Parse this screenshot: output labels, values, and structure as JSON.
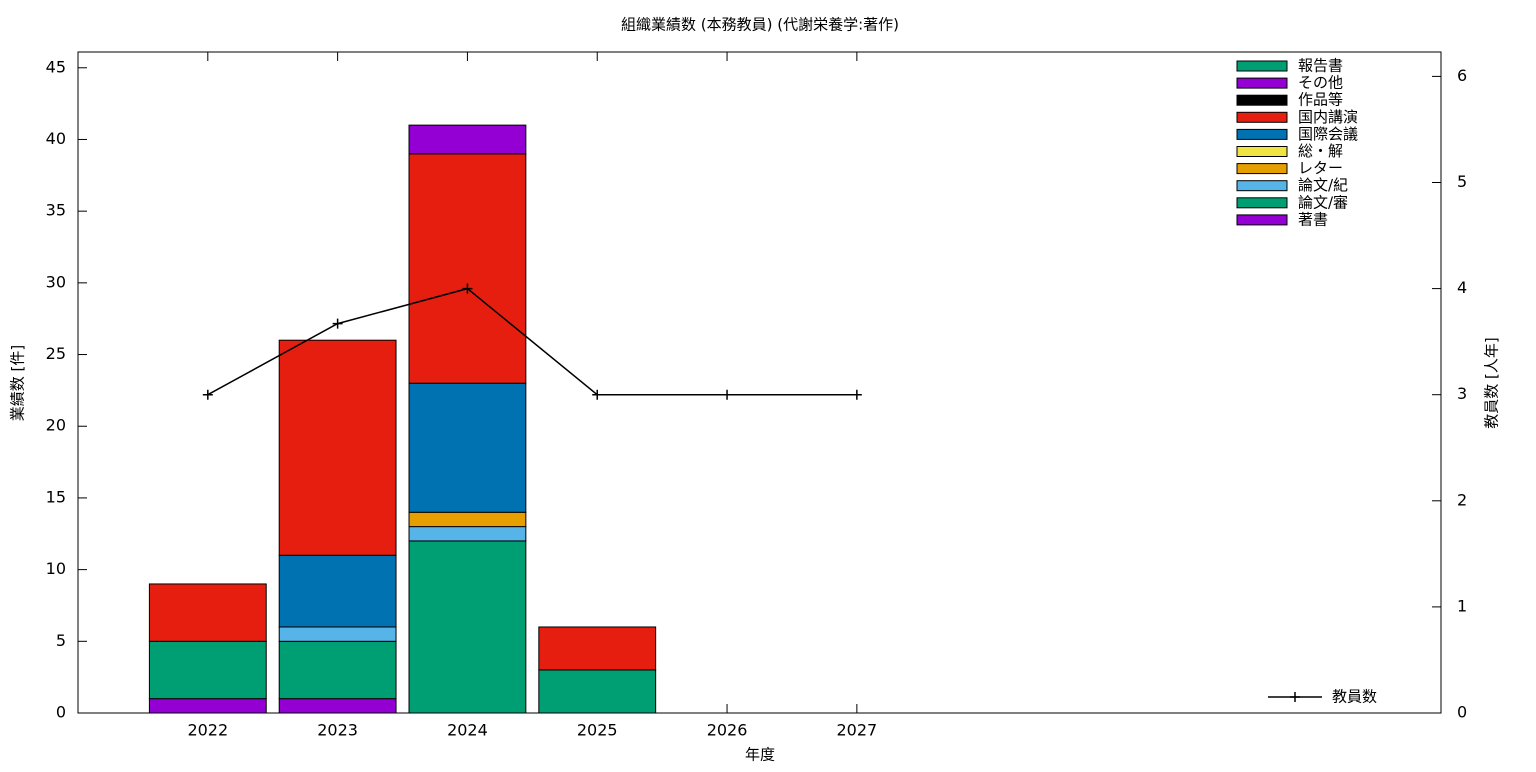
{
  "chart_data": {
    "type": "stacked-bar-line",
    "title": "組織業績数 (本務教員) (代謝栄養学:著作)",
    "x_label": "年度",
    "y_label": "業績数 [件]",
    "y2_label": "教員数 [人年]",
    "x": [
      2022,
      2023,
      2024,
      2025,
      2026,
      2027
    ],
    "xlim": [
      2021,
      2031.5
    ],
    "xticks": [
      2022,
      2023,
      2024,
      2025,
      2026,
      2027
    ],
    "ylim": [
      0,
      46.1
    ],
    "yticks": [
      0,
      5,
      10,
      15,
      20,
      25,
      30,
      35,
      40,
      45
    ],
    "y2lim": [
      0,
      6.23
    ],
    "y2ticks": [
      0,
      1,
      2,
      3,
      4,
      5,
      6
    ],
    "legend": "top-right",
    "series": [
      {
        "name": "報告書",
        "color": "#009e73",
        "values": [
          0,
          0,
          0,
          0,
          0,
          0
        ]
      },
      {
        "name": "その他",
        "color": "#9400d3",
        "values": [
          0,
          0,
          2,
          0,
          0,
          0
        ]
      },
      {
        "name": "作品等",
        "color": "#000000",
        "values": [
          0,
          0,
          0,
          0,
          0,
          0
        ]
      },
      {
        "name": "国内講演",
        "color": "#e51e10",
        "values": [
          4,
          15,
          16,
          3,
          0,
          0
        ]
      },
      {
        "name": "国際会議",
        "color": "#0072b2",
        "values": [
          0,
          5,
          9,
          0,
          0,
          0
        ]
      },
      {
        "name": "総・解",
        "color": "#f0e442",
        "values": [
          0,
          0,
          0,
          0,
          0,
          0
        ]
      },
      {
        "name": "レター",
        "color": "#e69f00",
        "values": [
          0,
          0,
          1,
          0,
          0,
          0
        ]
      },
      {
        "name": "論文/紀",
        "color": "#56b4e9",
        "values": [
          0,
          1,
          1,
          0,
          0,
          0
        ]
      },
      {
        "name": "論文/審",
        "color": "#009e73",
        "values": [
          4,
          4,
          12,
          3,
          0,
          0
        ]
      },
      {
        "name": "著書",
        "color": "#9400d3",
        "values": [
          1,
          1,
          0,
          0,
          0,
          0
        ]
      },
      {
        "name": "教員数",
        "color": "#000000",
        "axis": "y2",
        "type": "line",
        "values": [
          3,
          3.67,
          4,
          3,
          3,
          3
        ]
      }
    ]
  }
}
